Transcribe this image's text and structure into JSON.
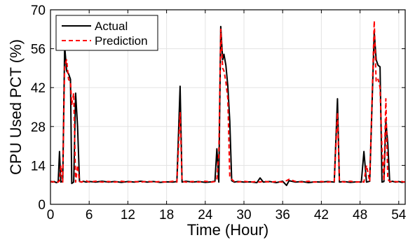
{
  "chart_data": {
    "type": "line",
    "xlabel": "Time (Hour)",
    "ylabel": "CPU Used PCT (%)",
    "xlim": [
      0,
      55
    ],
    "ylim": [
      0,
      70
    ],
    "xticks": [
      0,
      6,
      12,
      18,
      24,
      30,
      36,
      42,
      48,
      54
    ],
    "yticks": [
      0,
      14,
      28,
      42,
      56,
      70
    ],
    "grid": true,
    "legend_position": "top-left",
    "series": [
      {
        "name": "Actual",
        "color": "#000000",
        "style": "solid",
        "points": [
          [
            0,
            8.3
          ],
          [
            0.3,
            8.0
          ],
          [
            0.6,
            8.2
          ],
          [
            0.9,
            7.8
          ],
          [
            1.2,
            8.1
          ],
          [
            1.4,
            19.0
          ],
          [
            1.6,
            8.0
          ],
          [
            1.9,
            8.3
          ],
          [
            2.2,
            57.0
          ],
          [
            2.5,
            48.0
          ],
          [
            2.8,
            47.0
          ],
          [
            3.1,
            45.0
          ],
          [
            3.3,
            7.5
          ],
          [
            3.6,
            8.0
          ],
          [
            3.9,
            40.0
          ],
          [
            4.2,
            28.0
          ],
          [
            4.5,
            8.2
          ],
          [
            4.8,
            8.0
          ],
          [
            5.1,
            8.3
          ],
          [
            5.5,
            8.0
          ],
          [
            6,
            8.2
          ],
          [
            7,
            8.0
          ],
          [
            8,
            8.3
          ],
          [
            9,
            8.0
          ],
          [
            10,
            8.2
          ],
          [
            11,
            7.9
          ],
          [
            12,
            8.2
          ],
          [
            13,
            8.0
          ],
          [
            14,
            8.3
          ],
          [
            15,
            8.0
          ],
          [
            16,
            8.2
          ],
          [
            17,
            7.9
          ],
          [
            18,
            8.1
          ],
          [
            19,
            8.0
          ],
          [
            19.6,
            8.2
          ],
          [
            20.1,
            42.5
          ],
          [
            20.4,
            8.0
          ],
          [
            21,
            8.3
          ],
          [
            22,
            8.0
          ],
          [
            23,
            8.2
          ],
          [
            24,
            7.9
          ],
          [
            25,
            8.1
          ],
          [
            25.5,
            8.3
          ],
          [
            25.8,
            20.0
          ],
          [
            26.1,
            8.0
          ],
          [
            26.4,
            64.0
          ],
          [
            26.7,
            52.0
          ],
          [
            26.9,
            54.0
          ],
          [
            27.2,
            50.0
          ],
          [
            27.5,
            42.5
          ],
          [
            27.8,
            30.0
          ],
          [
            28.1,
            8.5
          ],
          [
            28.5,
            8.0
          ],
          [
            29,
            8.2
          ],
          [
            30,
            8.0
          ],
          [
            31,
            8.1
          ],
          [
            32,
            7.8
          ],
          [
            32.5,
            9.5
          ],
          [
            33,
            8.0
          ],
          [
            34,
            8.2
          ],
          [
            35,
            7.8
          ],
          [
            36,
            8.3
          ],
          [
            36.6,
            6.8
          ],
          [
            37,
            8.5
          ],
          [
            38,
            8.0
          ],
          [
            39,
            8.2
          ],
          [
            40,
            7.8
          ],
          [
            41,
            8.1
          ],
          [
            42,
            8.0
          ],
          [
            43,
            8.2
          ],
          [
            44,
            8.0
          ],
          [
            44.5,
            38.0
          ],
          [
            44.8,
            8.0
          ],
          [
            45.5,
            8.2
          ],
          [
            46.5,
            7.9
          ],
          [
            47.5,
            8.1
          ],
          [
            48.2,
            8.0
          ],
          [
            48.6,
            19.0
          ],
          [
            49,
            8.0
          ],
          [
            49.5,
            8.3
          ],
          [
            50.2,
            62.0
          ],
          [
            50.5,
            52.0
          ],
          [
            50.8,
            50.0
          ],
          [
            51.1,
            49.5
          ],
          [
            51.4,
            8.0
          ],
          [
            51.7,
            8.2
          ],
          [
            52.0,
            30.0
          ],
          [
            52.3,
            22.0
          ],
          [
            52.6,
            8.0
          ],
          [
            53.0,
            8.3
          ],
          [
            53.5,
            8.0
          ],
          [
            54.0,
            8.2
          ],
          [
            54.5,
            7.9
          ],
          [
            55,
            8.1
          ]
        ]
      },
      {
        "name": "Prediction",
        "color": "#ff0000",
        "style": "dashed",
        "points": [
          [
            0,
            8.0
          ],
          [
            0.3,
            8.2
          ],
          [
            0.6,
            8.0
          ],
          [
            0.9,
            8.3
          ],
          [
            1.2,
            8.0
          ],
          [
            1.4,
            8.5
          ],
          [
            1.6,
            14.0
          ],
          [
            1.9,
            8.0
          ],
          [
            2.2,
            50.0
          ],
          [
            2.5,
            52.0
          ],
          [
            2.8,
            45.0
          ],
          [
            3.1,
            44.0
          ],
          [
            3.3,
            36.0
          ],
          [
            3.6,
            40.0
          ],
          [
            3.9,
            8.0
          ],
          [
            4.2,
            14.0
          ],
          [
            4.5,
            8.3
          ],
          [
            4.8,
            8.0
          ],
          [
            5.1,
            8.2
          ],
          [
            5.5,
            8.5
          ],
          [
            6,
            8.0
          ],
          [
            7,
            8.3
          ],
          [
            8,
            8.0
          ],
          [
            9,
            8.2
          ],
          [
            10,
            8.0
          ],
          [
            11,
            8.3
          ],
          [
            12,
            8.0
          ],
          [
            13,
            8.2
          ],
          [
            14,
            8.0
          ],
          [
            15,
            8.3
          ],
          [
            16,
            8.0
          ],
          [
            17,
            8.2
          ],
          [
            18,
            8.0
          ],
          [
            19,
            8.3
          ],
          [
            19.6,
            8.0
          ],
          [
            20.1,
            33.0
          ],
          [
            20.4,
            8.3
          ],
          [
            21,
            8.0
          ],
          [
            22,
            8.2
          ],
          [
            23,
            8.0
          ],
          [
            24,
            8.3
          ],
          [
            25,
            8.0
          ],
          [
            25.5,
            8.2
          ],
          [
            25.8,
            9.0
          ],
          [
            26.1,
            18.0
          ],
          [
            26.4,
            63.0
          ],
          [
            26.7,
            49.0
          ],
          [
            26.9,
            48.0
          ],
          [
            27.2,
            44.0
          ],
          [
            27.5,
            38.0
          ],
          [
            27.8,
            10.0
          ],
          [
            28.1,
            9.0
          ],
          [
            28.5,
            8.2
          ],
          [
            29,
            8.0
          ],
          [
            30,
            8.3
          ],
          [
            31,
            8.0
          ],
          [
            32,
            8.2
          ],
          [
            32.5,
            8.0
          ],
          [
            33,
            8.3
          ],
          [
            34,
            8.0
          ],
          [
            35,
            8.2
          ],
          [
            36,
            8.0
          ],
          [
            36.6,
            8.5
          ],
          [
            37,
            9.0
          ],
          [
            38,
            8.2
          ],
          [
            39,
            8.0
          ],
          [
            40,
            8.3
          ],
          [
            41,
            8.0
          ],
          [
            42,
            8.2
          ],
          [
            43,
            8.0
          ],
          [
            44,
            8.2
          ],
          [
            44.5,
            33.0
          ],
          [
            44.8,
            8.5
          ],
          [
            45.5,
            8.0
          ],
          [
            46.5,
            8.3
          ],
          [
            47.5,
            8.0
          ],
          [
            48.2,
            8.2
          ],
          [
            48.6,
            8.0
          ],
          [
            49,
            14.0
          ],
          [
            49.5,
            8.2
          ],
          [
            50.2,
            66.0
          ],
          [
            50.5,
            44.0
          ],
          [
            50.8,
            45.0
          ],
          [
            51.1,
            42.0
          ],
          [
            51.4,
            20.0
          ],
          [
            51.7,
            8.5
          ],
          [
            52.0,
            38.0
          ],
          [
            52.3,
            9.0
          ],
          [
            52.6,
            8.3
          ],
          [
            53.0,
            8.0
          ],
          [
            53.5,
            8.2
          ],
          [
            54.0,
            8.0
          ],
          [
            54.5,
            8.2
          ],
          [
            55,
            8.0
          ]
        ]
      }
    ]
  }
}
